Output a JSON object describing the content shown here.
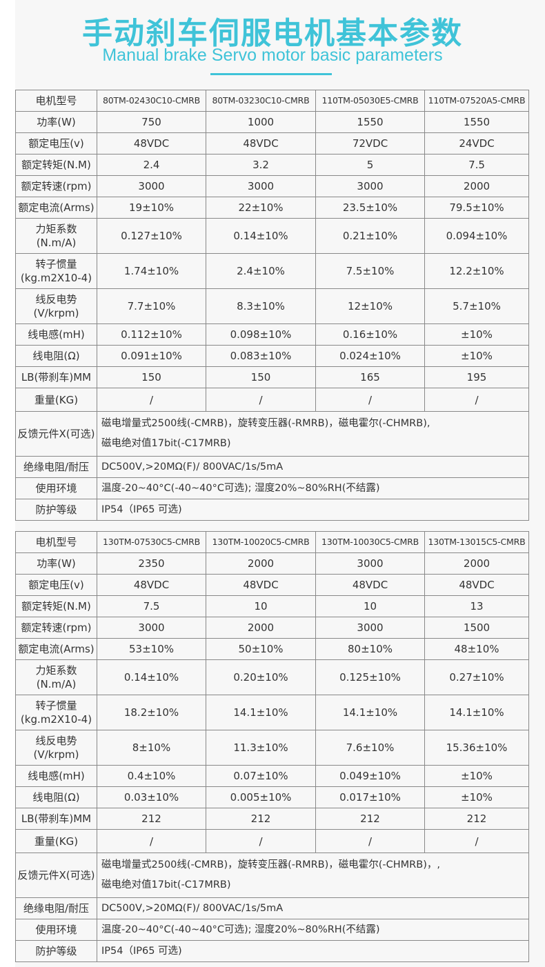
{
  "header": {
    "title": "手动刹车伺服电机基本参数",
    "subtitle": "Manual brake Servo motor basic parameters",
    "accent": "#3fc3d8"
  },
  "tables": [
    {
      "rows": [
        {
          "label": "电机型号",
          "values": [
            "80TM-02430C10-CMRB",
            "80TM-03230C10-CMRB",
            "110TM-05030E5-CMRB",
            "110TM-07520A5-CMRB"
          ]
        },
        {
          "label": "功率(W)",
          "values": [
            "750",
            "1000",
            "1550",
            "1550"
          ]
        },
        {
          "label": "额定电压(v)",
          "values": [
            "48VDC",
            "48VDC",
            "72VDC",
            "24VDC"
          ]
        },
        {
          "label": "额定转矩(N.M)",
          "values": [
            "2.4",
            "3.2",
            "5",
            "7.5"
          ]
        },
        {
          "label": "额定转速(rpm)",
          "values": [
            "3000",
            "3000",
            "3000",
            "2000"
          ]
        },
        {
          "label": "额定电流(Arms)",
          "values": [
            "19±10%",
            "22±10%",
            "23.5±10%",
            "79.5±10%"
          ]
        },
        {
          "label": "力矩系数\n(N.m/A)",
          "values": [
            "0.127±10%",
            "0.14±10%",
            "0.21±10%",
            "0.094±10%"
          ]
        },
        {
          "label": "转子惯量\n(kg.m2X10-4)",
          "values": [
            "1.74±10%",
            "2.4±10%",
            "7.5±10%",
            "12.2±10%"
          ]
        },
        {
          "label": "线反电势\n(V/krpm)",
          "values": [
            "7.7±10%",
            "8.3±10%",
            "12±10%",
            "5.7±10%"
          ]
        },
        {
          "label": "线电感(mH)",
          "values": [
            "0.112±10%",
            "0.098±10%",
            "0.16±10%",
            "±10%"
          ]
        },
        {
          "label": "线电阻(Ω)",
          "values": [
            "0.091±10%",
            "0.083±10%",
            "0.024±10%",
            "±10%"
          ]
        },
        {
          "label": "LB(带刹车)MM",
          "values": [
            "150",
            "150",
            "165",
            "195"
          ]
        },
        {
          "label": "重量(KG)",
          "values": [
            "/",
            "/",
            "/",
            "/"
          ]
        }
      ],
      "spans": [
        {
          "label": "反馈元件X(可选)",
          "text": "磁电增量式2500线(-CMRB)，旋转变压器(-RMRB)，磁电霍尔(-CHMRB),\n磁电绝对值17bit(-C17MRB)"
        },
        {
          "label": "绝缘电阻/耐压",
          "text": "DC500V,>20MΩ(F)/ 800VAC/1s/5mA"
        },
        {
          "label": "使用环境",
          "text": "温度-20~40°C(-40~40°C可选); 湿度20%~80%RH(不结露)"
        },
        {
          "label": "防护等级",
          "text": "IP54（IP65 可选)"
        }
      ]
    },
    {
      "rows": [
        {
          "label": "电机型号",
          "values": [
            "130TM-07530C5-CMRB",
            "130TM-10020C5-CMRB",
            "130TM-10030C5-CMRB",
            "130TM-13015C5-CMRB"
          ]
        },
        {
          "label": "功率(W)",
          "values": [
            "2350",
            "2000",
            "3000",
            "2000"
          ]
        },
        {
          "label": "额定电压(v)",
          "values": [
            "48VDC",
            "48VDC",
            "48VDC",
            "48VDC"
          ]
        },
        {
          "label": "额定转矩(N.M)",
          "values": [
            "7.5",
            "10",
            "10",
            "13"
          ]
        },
        {
          "label": "额定转速(rpm)",
          "values": [
            "3000",
            "2000",
            "3000",
            "1500"
          ]
        },
        {
          "label": "额定电流(Arms)",
          "values": [
            "53±10%",
            "50±10%",
            "80±10%",
            "48±10%"
          ]
        },
        {
          "label": "力矩系数\n(N.m/A)",
          "values": [
            "0.14±10%",
            "0.20±10%",
            "0.125±10%",
            "0.27±10%"
          ]
        },
        {
          "label": "转子惯量\n(kg.m2X10-4)",
          "values": [
            "18.2±10%",
            "14.1±10%",
            "14.1±10%",
            "14.1±10%"
          ]
        },
        {
          "label": "线反电势\n(V/krpm)",
          "values": [
            "8±10%",
            "11.3±10%",
            "7.6±10%",
            "15.36±10%"
          ]
        },
        {
          "label": "线电感(mH)",
          "values": [
            "0.4±10%",
            "0.07±10%",
            "0.049±10%",
            "±10%"
          ]
        },
        {
          "label": "线电阻(Ω)",
          "values": [
            "0.03±10%",
            "0.005±10%",
            "0.017±10%",
            "±10%"
          ]
        },
        {
          "label": "LB(带刹车)MM",
          "values": [
            "212",
            "212",
            "212",
            "212"
          ]
        },
        {
          "label": "重量(KG)",
          "values": [
            "/",
            "/",
            "/",
            "/"
          ]
        }
      ],
      "spans": [
        {
          "label": "反馈元件X(可选)",
          "text": "磁电增量式2500线(-CMRB)，旋转变压器(-RMRB)，磁电霍尔(-CHMRB)，,\n磁电绝对值17bit(-C17MRB)"
        },
        {
          "label": "绝缘电阻/耐压",
          "text": "DC500V,>20MΩ(F)/ 800VAC/1s/5mA"
        },
        {
          "label": "使用环境",
          "text": "温度-20~40°C(-40~40°C可选); 湿度20%~80%RH(不结露)"
        },
        {
          "label": "防护等级",
          "text": "IP54（IP65 可选)"
        }
      ]
    }
  ]
}
